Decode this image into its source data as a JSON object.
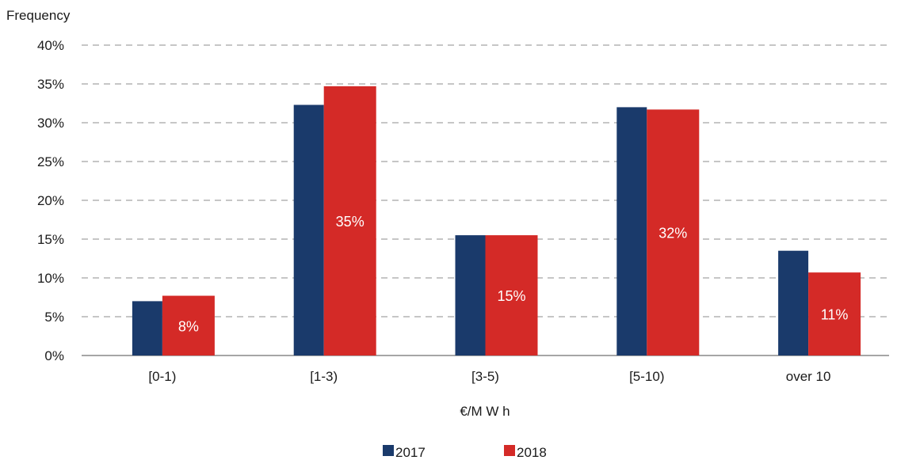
{
  "chart_data": {
    "type": "bar",
    "ylabel": "Frequency",
    "xlabel": "€/M W h",
    "categories": [
      "[0-1)",
      "[1-3)",
      "[3-5)",
      "[5-10)",
      "over 10"
    ],
    "series": [
      {
        "name": "2017",
        "color": "#1a3a6b",
        "values": [
          7,
          32.3,
          15.5,
          32,
          13.5
        ]
      },
      {
        "name": "2018",
        "color": "#d42a27",
        "values": [
          7.7,
          34.7,
          15.5,
          31.7,
          10.7
        ],
        "data_labels": [
          "8%",
          "35%",
          "15%",
          "32%",
          "11%"
        ]
      }
    ],
    "ylim": [
      0,
      40
    ],
    "yticks": [
      "0%",
      "5%",
      "10%",
      "15%",
      "20%",
      "25%",
      "30%",
      "35%",
      "40%"
    ],
    "grid": true,
    "legend_position": "bottom"
  }
}
